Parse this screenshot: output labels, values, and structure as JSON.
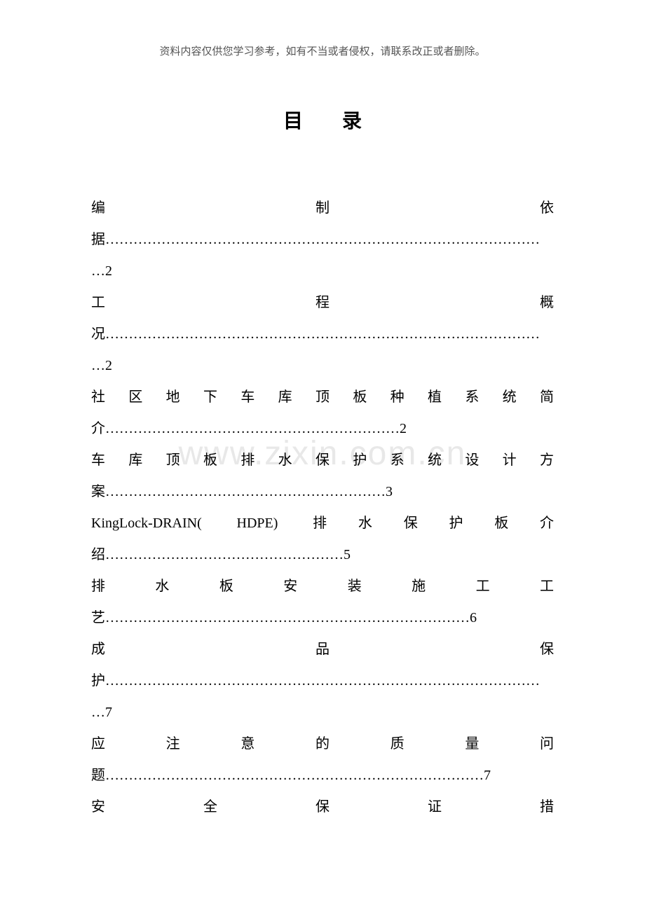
{
  "header_note": "资料内容仅供您学习参考，如有不当或者侵权，请联系改正或者删除。",
  "title": "目　　录",
  "watermark": "www.zixin.com.cn",
  "toc": [
    {
      "line1": "编制依",
      "line2": "据…………………………………………………………………………………",
      "line3": "…2"
    },
    {
      "line1": "工程概",
      "line2": "况…………………………………………………………………………………",
      "line3": "…2"
    },
    {
      "line1": "社区地下车库顶板种植系统简",
      "line2": "介………………………………………………………2"
    },
    {
      "line1": "车库顶板排水保护系统设计方",
      "line2": "案……………………………………………………3"
    },
    {
      "line1": "KingLock-DRAIN( HDPE) 排水保护板介",
      "line2": "绍……………………………………………5"
    },
    {
      "line1": "排水板安装施工工",
      "line2": "艺……………………………………………………………………6"
    },
    {
      "line1": "成品保",
      "line2": "护…………………………………………………………………………………",
      "line3": "…7"
    },
    {
      "line1": "应注意的质量问",
      "line2": "题………………………………………………………………………7"
    },
    {
      "line1": "安全保证措",
      "line2": ""
    }
  ]
}
